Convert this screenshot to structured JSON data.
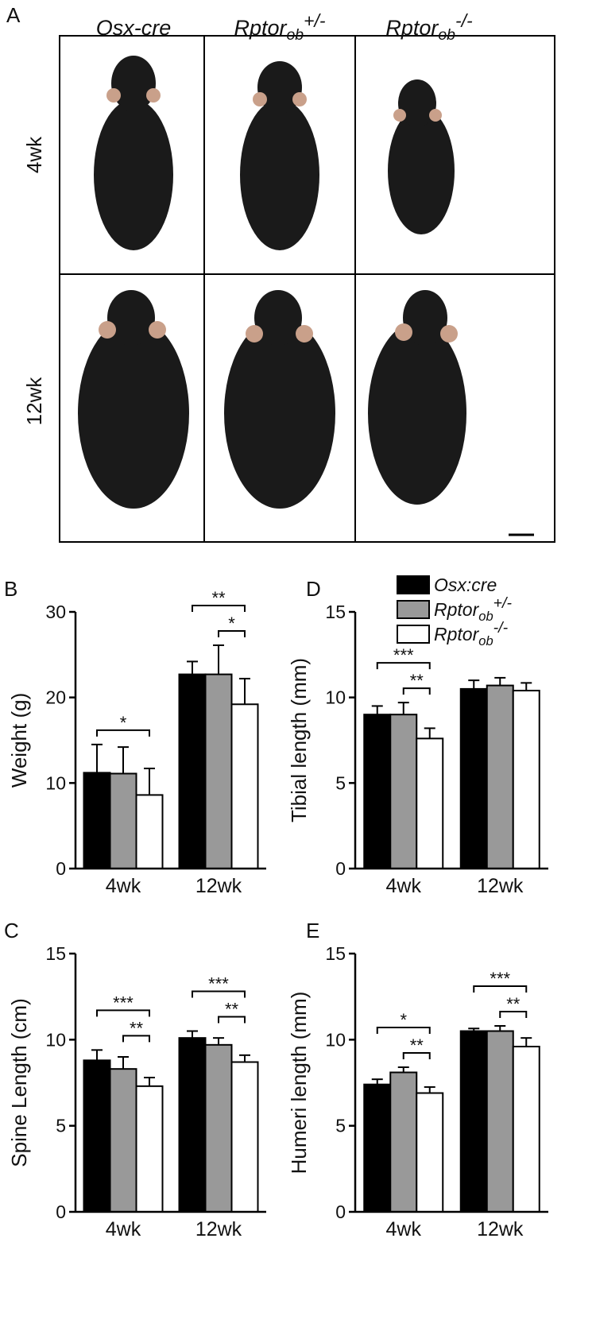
{
  "photo_panel": {
    "panel": "A",
    "columns": [
      {
        "base": "Osx-cre"
      },
      {
        "base": "Rptor",
        "sub": "ob",
        "sup": "+/-"
      },
      {
        "base": "Rptor",
        "sub": "ob",
        "sup": "-/-"
      }
    ],
    "rows": [
      "4wk",
      "12wk"
    ]
  },
  "chart_data": [
    {
      "type": "bar",
      "panel": "B",
      "y_label": "Weight (g)",
      "categories": [
        "4wk",
        "12wk"
      ],
      "ylim": [
        0,
        30
      ],
      "yticks": [
        0,
        10,
        20,
        30
      ],
      "series": [
        {
          "color": "#000000",
          "values": [
            11.2,
            22.7
          ],
          "errors": [
            3.3,
            1.5
          ]
        },
        {
          "color": "#999999",
          "values": [
            11.1,
            22.7
          ],
          "errors": [
            3.1,
            3.4
          ]
        },
        {
          "color": "#ffffff",
          "values": [
            8.6,
            19.2
          ],
          "errors": [
            3.1,
            3.0
          ]
        }
      ],
      "annotations": [
        {
          "text": "*",
          "group": 0,
          "from": 0,
          "to": 2
        },
        {
          "text": "**",
          "group": 1,
          "from": 0,
          "to": 2
        },
        {
          "text": "*",
          "group": 1,
          "from": 1,
          "to": 2
        }
      ]
    },
    {
      "type": "bar",
      "panel": "D",
      "y_label": "Tibial length (mm)",
      "categories": [
        "4wk",
        "12wk"
      ],
      "ylim": [
        0,
        15
      ],
      "yticks": [
        0,
        5,
        10,
        15
      ],
      "legend": "top-right",
      "series": [
        {
          "name": "Osx:cre",
          "color": "#000000",
          "values": [
            9.0,
            10.5
          ],
          "errors": [
            0.5,
            0.5
          ]
        },
        {
          "name": "Rptor",
          "name_sub": "ob",
          "name_sup": "+/-",
          "color": "#999999",
          "values": [
            9.0,
            10.7
          ],
          "errors": [
            0.7,
            0.45
          ]
        },
        {
          "name": "Rptor",
          "name_sub": "ob",
          "name_sup": "-/-",
          "color": "#ffffff",
          "values": [
            7.6,
            10.4
          ],
          "errors": [
            0.6,
            0.45
          ]
        }
      ],
      "annotations": [
        {
          "text": "***",
          "group": 0,
          "from": 0,
          "to": 2
        },
        {
          "text": "**",
          "group": 0,
          "from": 1,
          "to": 2
        }
      ]
    },
    {
      "type": "bar",
      "panel": "C",
      "y_label": "Spine Length (cm)",
      "categories": [
        "4wk",
        "12wk"
      ],
      "ylim": [
        0,
        15
      ],
      "yticks": [
        0,
        5,
        10,
        15
      ],
      "series": [
        {
          "color": "#000000",
          "values": [
            8.8,
            10.1
          ],
          "errors": [
            0.6,
            0.4
          ]
        },
        {
          "color": "#999999",
          "values": [
            8.3,
            9.7
          ],
          "errors": [
            0.7,
            0.4
          ]
        },
        {
          "color": "#ffffff",
          "values": [
            7.3,
            8.7
          ],
          "errors": [
            0.5,
            0.4
          ]
        }
      ],
      "annotations": [
        {
          "text": "***",
          "group": 0,
          "from": 0,
          "to": 2
        },
        {
          "text": "**",
          "group": 0,
          "from": 1,
          "to": 2
        },
        {
          "text": "***",
          "group": 1,
          "from": 0,
          "to": 2
        },
        {
          "text": "**",
          "group": 1,
          "from": 1,
          "to": 2
        }
      ]
    },
    {
      "type": "bar",
      "panel": "E",
      "y_label": "Humeri length (mm)",
      "categories": [
        "4wk",
        "12wk"
      ],
      "ylim": [
        0,
        15
      ],
      "yticks": [
        0,
        5,
        10,
        15
      ],
      "series": [
        {
          "color": "#000000",
          "values": [
            7.4,
            10.5
          ],
          "errors": [
            0.3,
            0.15
          ]
        },
        {
          "color": "#999999",
          "values": [
            8.1,
            10.5
          ],
          "errors": [
            0.3,
            0.3
          ]
        },
        {
          "color": "#ffffff",
          "values": [
            6.9,
            9.6
          ],
          "errors": [
            0.35,
            0.5
          ]
        }
      ],
      "annotations": [
        {
          "text": "*",
          "group": 0,
          "from": 0,
          "to": 2
        },
        {
          "text": "**",
          "group": 0,
          "from": 1,
          "to": 2
        },
        {
          "text": "***",
          "group": 1,
          "from": 0,
          "to": 2
        },
        {
          "text": "**",
          "group": 1,
          "from": 1,
          "to": 2
        }
      ]
    }
  ]
}
